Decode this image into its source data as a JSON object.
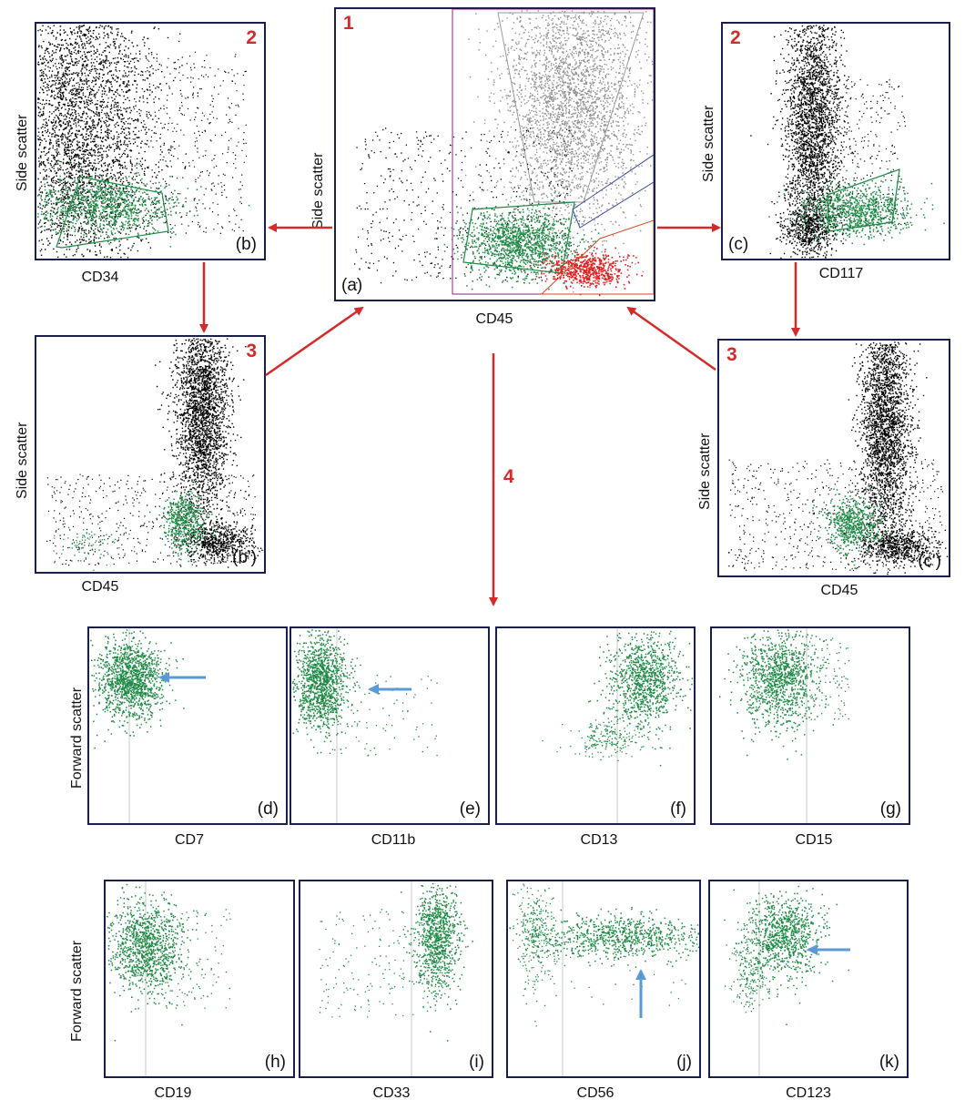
{
  "labels": {
    "side_scatter": "Side scatter",
    "forward_scatter": "Forward scatter",
    "step_4": "4"
  },
  "colors": {
    "gated": "#1e8a45",
    "events": "#000000",
    "granulocytes": "#8f8f8f",
    "lymphocytes": "#e02020",
    "arrow": "#d42a2a",
    "highlight_arrow": "#5b9bd5"
  },
  "panels": {
    "a": {
      "letter": "(a)",
      "step": "1",
      "xlabel": "CD45"
    },
    "b": {
      "letter": "(b)",
      "step": "2",
      "xlabel": "CD34"
    },
    "c": {
      "letter": "(c)",
      "step": "2",
      "xlabel": "CD117"
    },
    "b2": {
      "letter": "(b')",
      "step": "3",
      "xlabel": "CD45"
    },
    "c2": {
      "letter": "(c')",
      "step": "3",
      "xlabel": "CD45"
    },
    "d": {
      "letter": "(d)",
      "xlabel": "CD7"
    },
    "e": {
      "letter": "(e)",
      "xlabel": "CD11b"
    },
    "f": {
      "letter": "(f)",
      "xlabel": "CD13"
    },
    "g": {
      "letter": "(g)",
      "xlabel": "CD15"
    },
    "h": {
      "letter": "(h)",
      "xlabel": "CD19"
    },
    "i": {
      "letter": "(i)",
      "xlabel": "CD33"
    },
    "j": {
      "letter": "(j)",
      "xlabel": "CD56"
    },
    "k": {
      "letter": "(k)",
      "xlabel": "CD123"
    }
  }
}
